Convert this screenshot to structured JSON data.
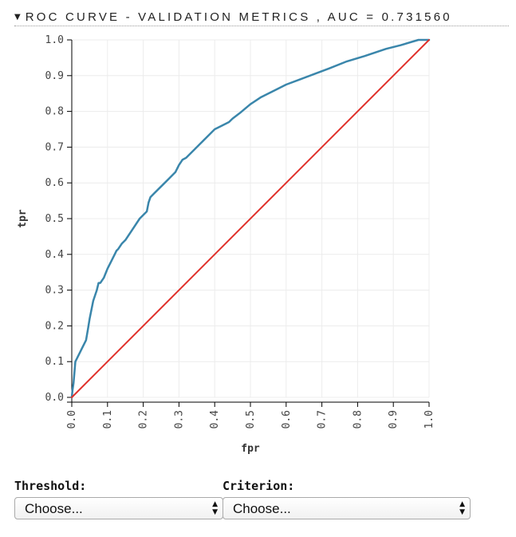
{
  "header": {
    "collapse_icon": "caret-down-icon",
    "title": "ROC CURVE - VALIDATION METRICS , AUC = 0.731560"
  },
  "chart_data": {
    "type": "line",
    "title": "ROC CURVE - VALIDATION METRICS , AUC = 0.731560",
    "auc": 0.73156,
    "xlabel": "fpr",
    "ylabel": "tpr",
    "xlim": [
      0,
      1
    ],
    "ylim": [
      0,
      1
    ],
    "grid": true,
    "x_ticks": [
      "0.0",
      "0.1",
      "0.2",
      "0.3",
      "0.4",
      "0.5",
      "0.6",
      "0.7",
      "0.8",
      "0.9",
      "1.0"
    ],
    "y_ticks": [
      "0.0",
      "0.1",
      "0.2",
      "0.3",
      "0.4",
      "0.5",
      "0.6",
      "0.7",
      "0.8",
      "0.9",
      "1.0"
    ],
    "series": [
      {
        "name": "roc",
        "color": "#3a86ab",
        "x": [
          0,
          0.002,
          0.005,
          0.01,
          0.02,
          0.03,
          0.04,
          0.045,
          0.05,
          0.06,
          0.07,
          0.075,
          0.08,
          0.09,
          0.1,
          0.11,
          0.12,
          0.125,
          0.13,
          0.14,
          0.15,
          0.17,
          0.19,
          0.21,
          0.215,
          0.22,
          0.23,
          0.25,
          0.27,
          0.29,
          0.3,
          0.31,
          0.32,
          0.34,
          0.36,
          0.38,
          0.4,
          0.42,
          0.44,
          0.45,
          0.47,
          0.5,
          0.53,
          0.55,
          0.57,
          0.6,
          0.64,
          0.68,
          0.72,
          0.77,
          0.82,
          0.88,
          0.92,
          0.97,
          1.0
        ],
        "y": [
          0,
          0.02,
          0.04,
          0.1,
          0.12,
          0.14,
          0.16,
          0.19,
          0.22,
          0.27,
          0.3,
          0.32,
          0.32,
          0.335,
          0.36,
          0.38,
          0.4,
          0.41,
          0.415,
          0.43,
          0.44,
          0.47,
          0.5,
          0.52,
          0.545,
          0.56,
          0.57,
          0.59,
          0.61,
          0.63,
          0.65,
          0.665,
          0.67,
          0.69,
          0.71,
          0.73,
          0.75,
          0.76,
          0.77,
          0.78,
          0.795,
          0.82,
          0.84,
          0.85,
          0.86,
          0.875,
          0.89,
          0.905,
          0.92,
          0.94,
          0.955,
          0.975,
          0.985,
          1.0,
          1.0
        ]
      },
      {
        "name": "baseline",
        "color": "#e0312b",
        "x": [
          0,
          1
        ],
        "y": [
          0,
          1
        ]
      }
    ]
  },
  "controls": {
    "threshold": {
      "label": "Threshold:",
      "value": "Choose..."
    },
    "criterion": {
      "label": "Criterion:",
      "value": "Choose..."
    }
  }
}
